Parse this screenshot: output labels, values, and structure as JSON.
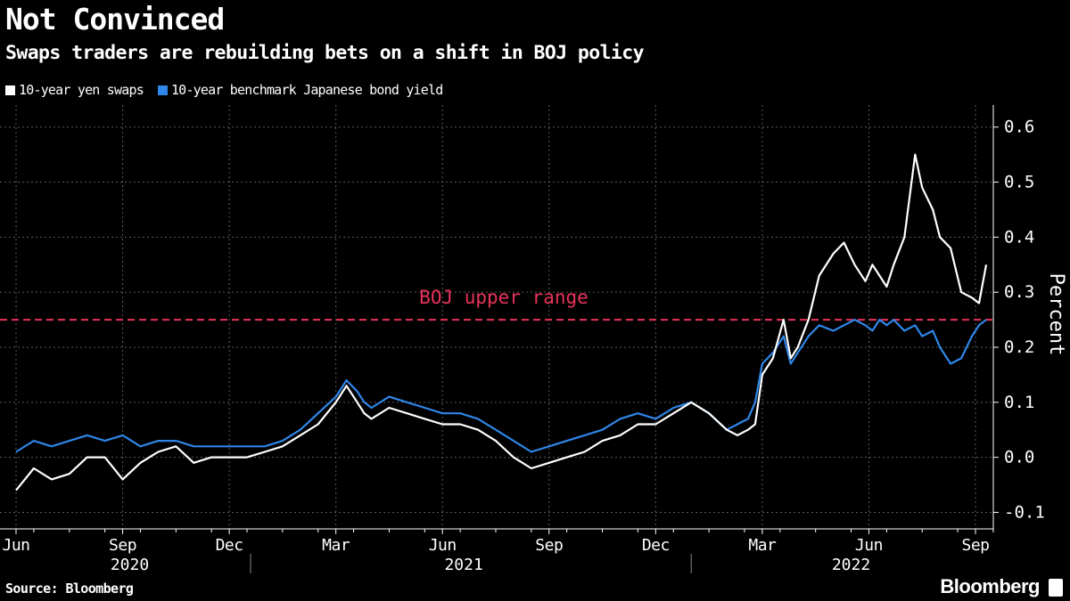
{
  "header": {
    "title": "Not Convinced",
    "subtitle": "Swaps traders are rebuilding bets on a shift in BOJ policy"
  },
  "legend": {
    "items": [
      {
        "label": "10-year yen swaps",
        "color": "#ffffff"
      },
      {
        "label": "10-year benchmark Japanese bond yield",
        "color": "#2f86e8"
      }
    ]
  },
  "footer": {
    "source": "Source: Bloomberg",
    "brand": "Bloomberg"
  },
  "chart_data": {
    "type": "line",
    "title": "Not Convinced",
    "subtitle": "Swaps traders are rebuilding bets on a shift in BOJ policy",
    "xlabel": "",
    "ylabel": "Percent",
    "ylim": [
      -0.13,
      0.64
    ],
    "yticks": [
      -0.1,
      0.0,
      0.1,
      0.2,
      0.3,
      0.4,
      0.5,
      0.6
    ],
    "ytick_labels": [
      "-0.1",
      "0.0",
      "0.1",
      "0.2",
      "0.3",
      "0.4",
      "0.5",
      "0.6"
    ],
    "xlim": [
      0,
      27.7
    ],
    "x_unit": "months since 2020-05-15",
    "month_ticks": [
      {
        "label": "Jun",
        "x": 0.0
      },
      {
        "label": "Sep",
        "x": 3.0
      },
      {
        "label": "Dec",
        "x": 6.0
      },
      {
        "label": "Mar",
        "x": 9.0
      },
      {
        "label": "Jun",
        "x": 12.0
      },
      {
        "label": "Sep",
        "x": 15.0
      },
      {
        "label": "Dec",
        "x": 18.0
      },
      {
        "label": "Mar",
        "x": 21.0
      },
      {
        "label": "Jun",
        "x": 24.0
      },
      {
        "label": "Sep",
        "x": 27.0
      }
    ],
    "years": [
      {
        "label": "2020",
        "center": 3.2,
        "end": 6.6
      },
      {
        "label": "2021",
        "center": 12.6,
        "end": 19.0
      },
      {
        "label": "2022",
        "center": 23.5
      }
    ],
    "reference_line": {
      "label": "BOJ upper range",
      "value": 0.25,
      "color": "#e8335a"
    },
    "series": [
      {
        "name": "10-year yen swaps",
        "color": "#ffffff",
        "x": [
          0.0,
          0.5,
          1.0,
          1.5,
          2.0,
          2.5,
          3.0,
          3.5,
          4.0,
          4.5,
          5.0,
          5.5,
          6.0,
          6.5,
          7.0,
          7.5,
          8.0,
          8.5,
          9.0,
          9.3,
          9.6,
          9.8,
          10.0,
          10.5,
          11.0,
          11.5,
          12.0,
          12.5,
          13.0,
          13.5,
          14.0,
          14.5,
          15.0,
          15.5,
          16.0,
          16.5,
          17.0,
          17.5,
          18.0,
          18.5,
          19.0,
          19.5,
          20.0,
          20.3,
          20.6,
          20.8,
          21.0,
          21.3,
          21.6,
          21.8,
          22.0,
          22.3,
          22.6,
          23.0,
          23.3,
          23.6,
          23.9,
          24.1,
          24.3,
          24.5,
          24.7,
          25.0,
          25.3,
          25.5,
          25.8,
          26.0,
          26.3,
          26.6,
          26.9,
          27.1,
          27.3
        ],
        "values": [
          -0.06,
          -0.02,
          -0.04,
          -0.03,
          0.0,
          0.0,
          -0.04,
          -0.01,
          0.01,
          0.02,
          -0.01,
          0.0,
          0.0,
          0.0,
          0.01,
          0.02,
          0.04,
          0.06,
          0.1,
          0.13,
          0.1,
          0.08,
          0.07,
          0.09,
          0.08,
          0.07,
          0.06,
          0.06,
          0.05,
          0.03,
          0.0,
          -0.02,
          -0.01,
          0.0,
          0.01,
          0.03,
          0.04,
          0.06,
          0.06,
          0.08,
          0.1,
          0.08,
          0.05,
          0.04,
          0.05,
          0.06,
          0.15,
          0.18,
          0.25,
          0.18,
          0.2,
          0.25,
          0.33,
          0.37,
          0.39,
          0.35,
          0.32,
          0.35,
          0.33,
          0.31,
          0.35,
          0.4,
          0.55,
          0.49,
          0.45,
          0.4,
          0.38,
          0.3,
          0.29,
          0.28,
          0.35
        ]
      },
      {
        "name": "10-year benchmark Japanese bond yield",
        "color": "#2f86e8",
        "x": [
          0.0,
          0.5,
          1.0,
          1.5,
          2.0,
          2.5,
          3.0,
          3.5,
          4.0,
          4.5,
          5.0,
          5.5,
          6.0,
          6.5,
          7.0,
          7.5,
          8.0,
          8.5,
          9.0,
          9.3,
          9.6,
          9.8,
          10.0,
          10.5,
          11.0,
          11.5,
          12.0,
          12.5,
          13.0,
          13.5,
          14.0,
          14.5,
          15.0,
          15.5,
          16.0,
          16.5,
          17.0,
          17.5,
          18.0,
          18.5,
          19.0,
          19.5,
          20.0,
          20.3,
          20.6,
          20.8,
          21.0,
          21.3,
          21.6,
          21.8,
          22.0,
          22.3,
          22.6,
          23.0,
          23.3,
          23.6,
          23.9,
          24.1,
          24.3,
          24.5,
          24.7,
          25.0,
          25.3,
          25.5,
          25.8,
          26.0,
          26.3,
          26.6,
          26.9,
          27.1,
          27.3
        ],
        "values": [
          0.01,
          0.03,
          0.02,
          0.03,
          0.04,
          0.03,
          0.04,
          0.02,
          0.03,
          0.03,
          0.02,
          0.02,
          0.02,
          0.02,
          0.02,
          0.03,
          0.05,
          0.08,
          0.11,
          0.14,
          0.12,
          0.1,
          0.09,
          0.11,
          0.1,
          0.09,
          0.08,
          0.08,
          0.07,
          0.05,
          0.03,
          0.01,
          0.02,
          0.03,
          0.04,
          0.05,
          0.07,
          0.08,
          0.07,
          0.09,
          0.1,
          0.08,
          0.05,
          0.06,
          0.07,
          0.1,
          0.17,
          0.19,
          0.22,
          0.17,
          0.19,
          0.22,
          0.24,
          0.23,
          0.24,
          0.25,
          0.24,
          0.23,
          0.25,
          0.24,
          0.25,
          0.23,
          0.24,
          0.22,
          0.23,
          0.2,
          0.17,
          0.18,
          0.22,
          0.24,
          0.25
        ]
      }
    ]
  }
}
